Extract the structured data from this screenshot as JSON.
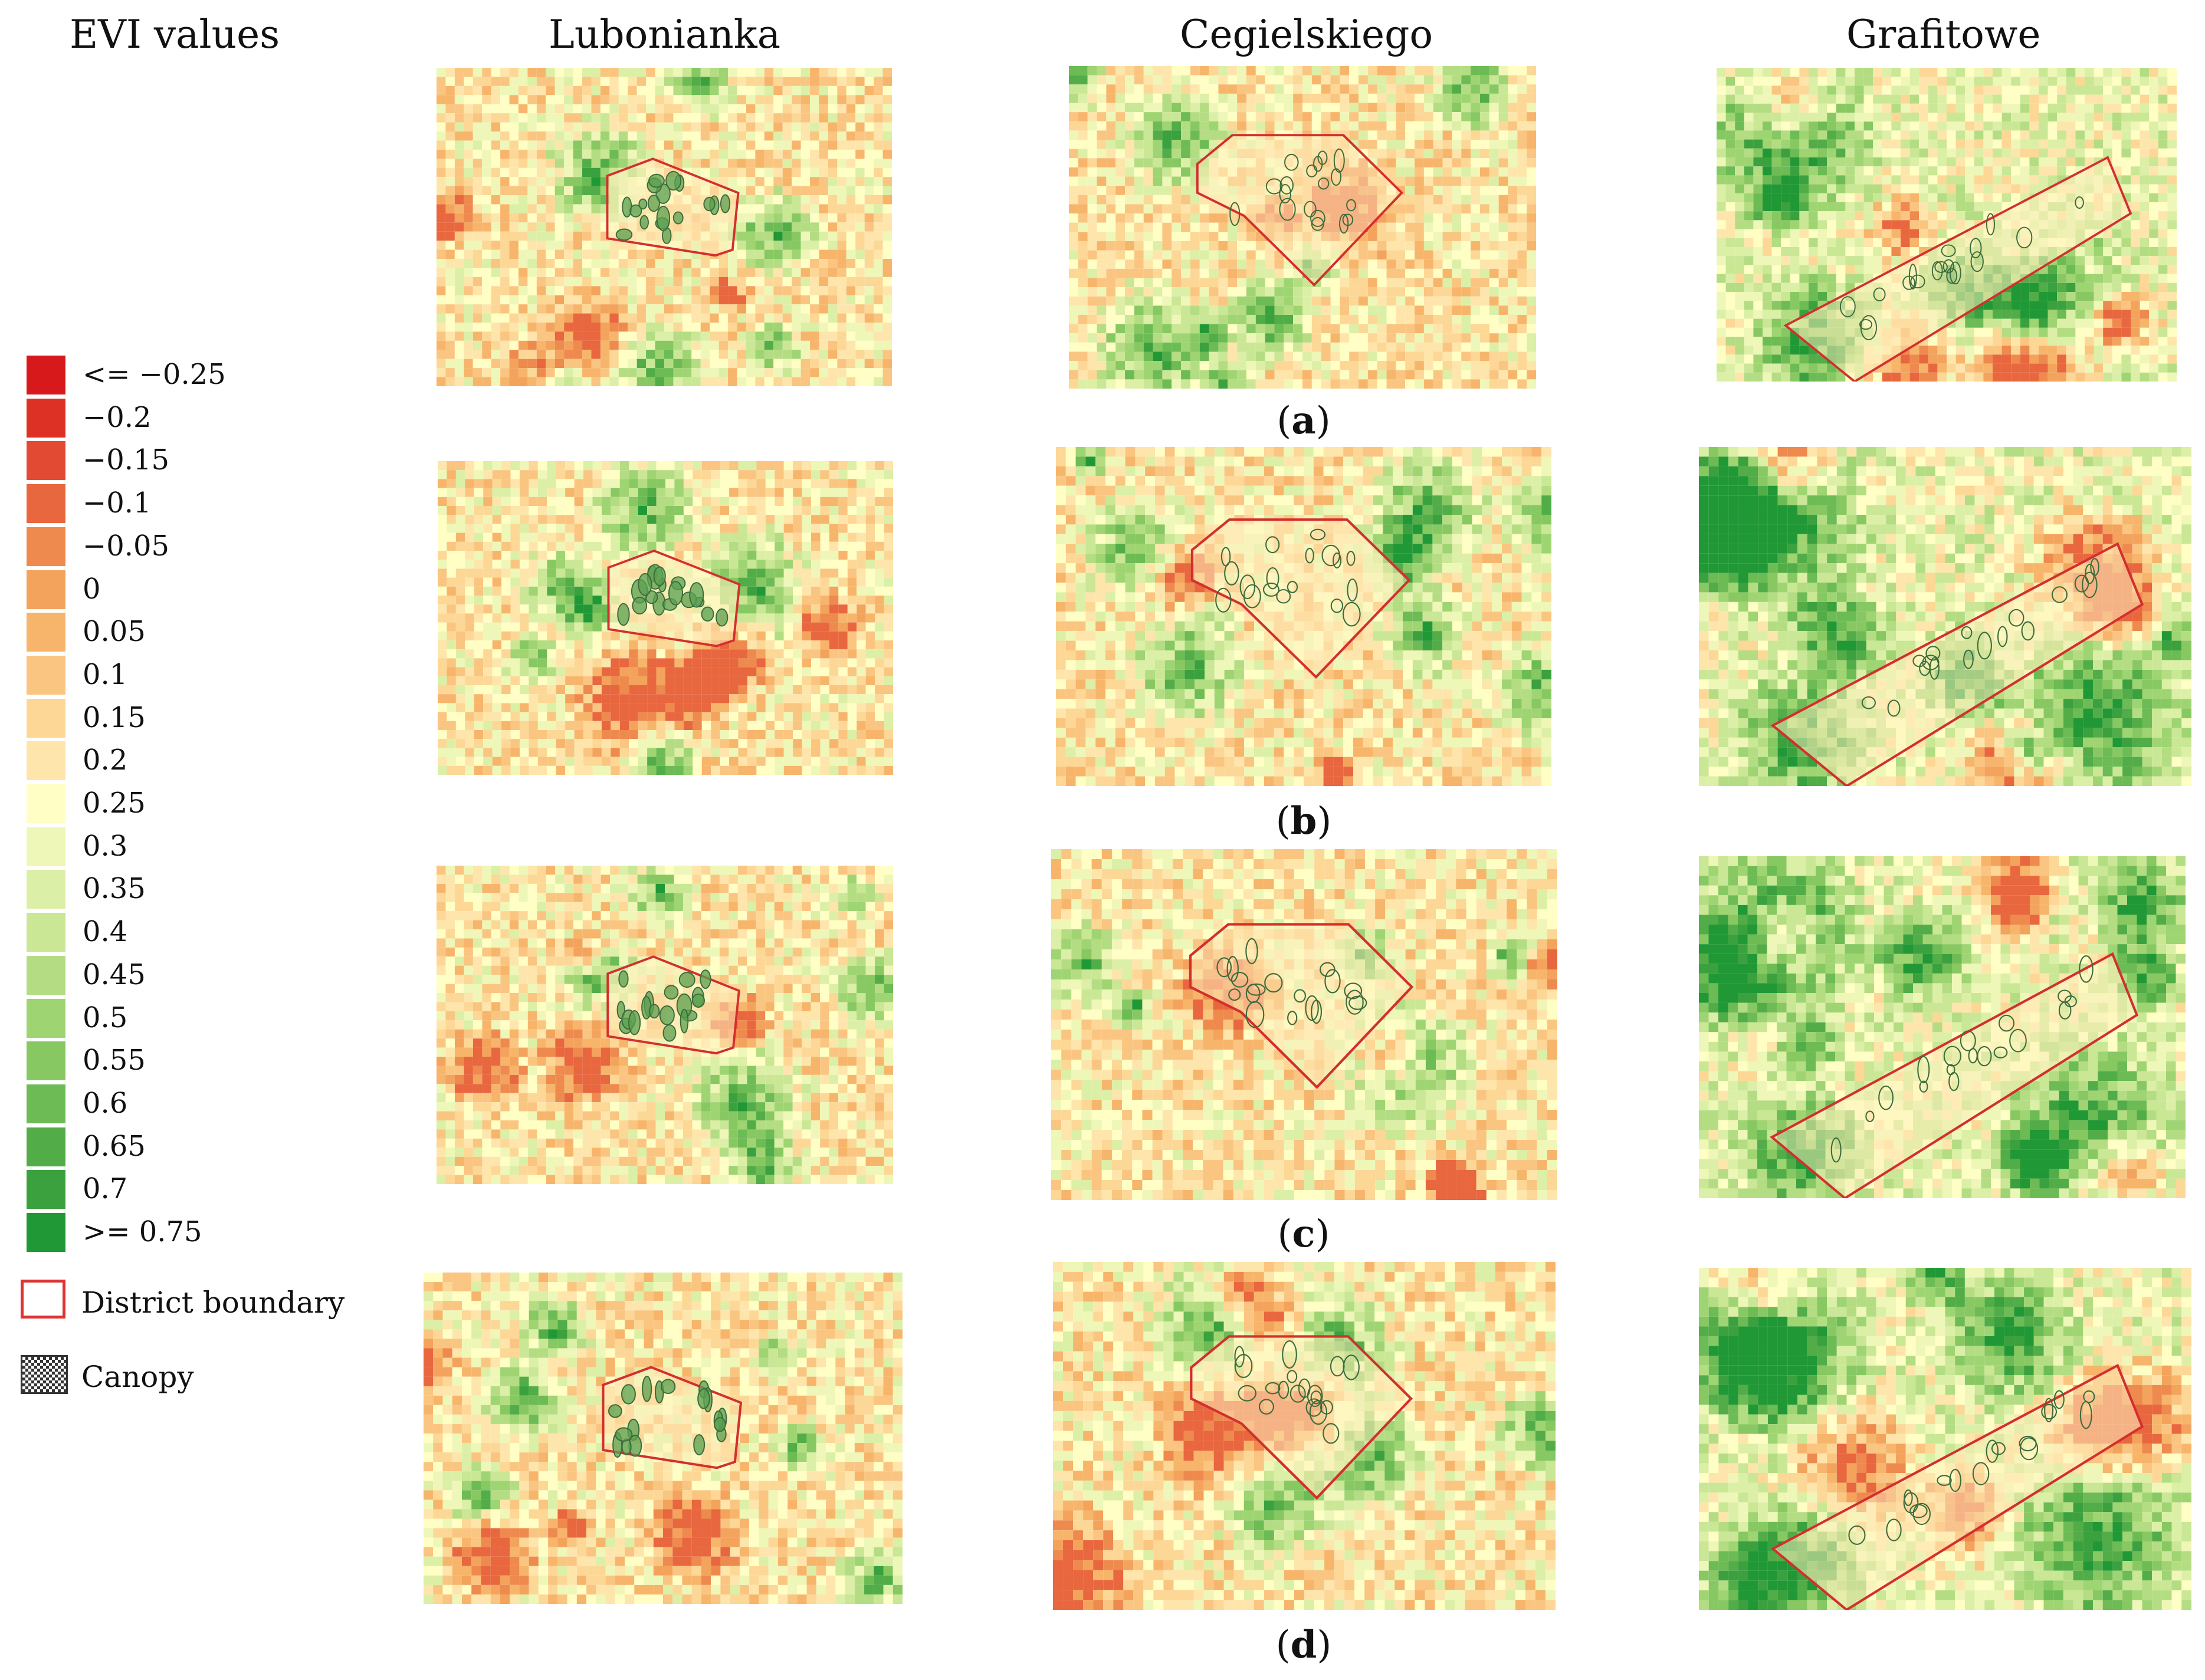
{
  "headers": {
    "legend_title": "EVI values",
    "col1": "Lubonianka",
    "col2": "Cegielskiego",
    "col3": "Grafitowe"
  },
  "legend": {
    "items": [
      {
        "label": "<= −0.25",
        "color": "#d7191c"
      },
      {
        "label": "−0.2",
        "color": "#dc3124"
      },
      {
        "label": "−0.15",
        "color": "#e24a33"
      },
      {
        "label": "−0.1",
        "color": "#e8673f"
      },
      {
        "label": "−0.05",
        "color": "#ee8a4e"
      },
      {
        "label": "0",
        "color": "#f3a35c"
      },
      {
        "label": "0.05",
        "color": "#f7b56c"
      },
      {
        "label": "0.1",
        "color": "#fac581"
      },
      {
        "label": "0.15",
        "color": "#fcd796"
      },
      {
        "label": "0.2",
        "color": "#fee5ab"
      },
      {
        "label": "0.25",
        "color": "#fffec4"
      },
      {
        "label": "0.3",
        "color": "#eef7b7"
      },
      {
        "label": "0.35",
        "color": "#dcefa6"
      },
      {
        "label": "0.4",
        "color": "#c9e795"
      },
      {
        "label": "0.45",
        "color": "#b4dd83"
      },
      {
        "label": "0.5",
        "color": "#9fd472"
      },
      {
        "label": "0.55",
        "color": "#87c862"
      },
      {
        "label": "0.6",
        "color": "#6dbb55"
      },
      {
        "label": "0.65",
        "color": "#52ad48"
      },
      {
        "label": "0.7",
        "color": "#3aa13e"
      },
      {
        "label": ">= 0.75",
        "color": "#219836"
      }
    ],
    "boundary_label": "District boundary",
    "canopy_label": "Canopy",
    "boundary_color": "#d32f2f"
  },
  "captions": {
    "a": "a",
    "b": "b",
    "c": "c",
    "d": "d"
  }
}
